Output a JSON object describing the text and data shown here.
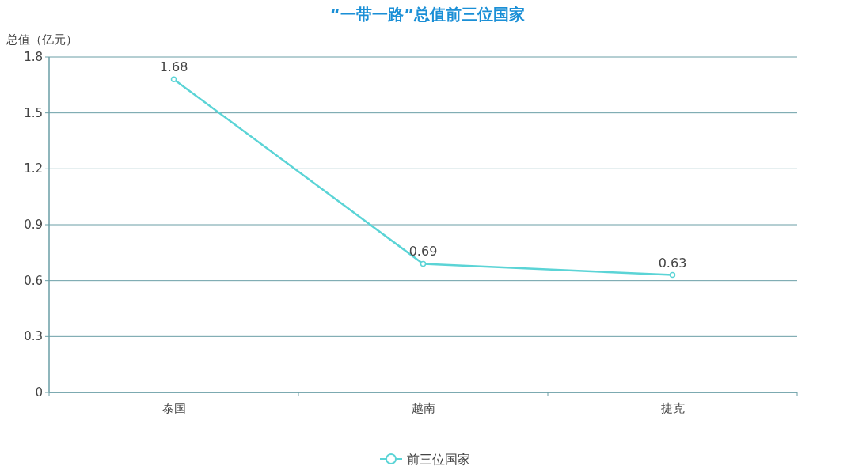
{
  "chart_data": {
    "type": "line",
    "title": "“一带一路”总值前三位国家",
    "ylabel": "总值（亿元）",
    "categories": [
      "泰国",
      "越南",
      "捷克"
    ],
    "series": [
      {
        "name": "前三位国家",
        "color": "#5bd4d6",
        "values": [
          1.68,
          0.69,
          0.63
        ]
      }
    ],
    "ylim": [
      0,
      1.8
    ],
    "yticks": [
      0,
      0.3,
      0.6,
      0.9,
      1.2,
      1.5,
      1.8
    ],
    "grid": "y",
    "legend": "bottom",
    "marker": "circle",
    "line_style": "solid",
    "data_labels": true
  }
}
